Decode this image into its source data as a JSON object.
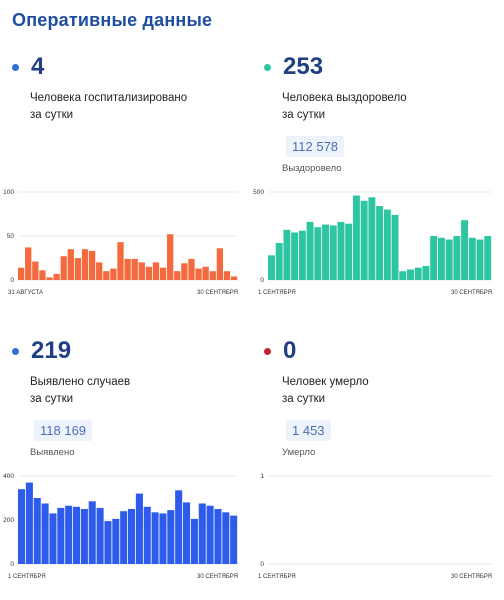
{
  "header": {
    "title": "Оперативные данные"
  },
  "panels": {
    "hospitalized": {
      "value": "4",
      "desc_line1": "Человека госпитализировано",
      "desc_line2": "за сутки",
      "dot_color": "#2f6fd6"
    },
    "recovered": {
      "value": "253",
      "desc_line1": "Человека выздоровело",
      "desc_line2": "за сутки",
      "total_value": "112 578",
      "total_label": "Выздоровело",
      "dot_color": "#2ec5a3"
    },
    "detected": {
      "value": "219",
      "desc_line1": "Выявлено случаев",
      "desc_line2": "за сутки",
      "total_value": "118 169",
      "total_label": "Выявлено",
      "dot_color": "#2f6fd6"
    },
    "deaths": {
      "value": "0",
      "desc_line1": "Человек умерло",
      "desc_line2": "за сутки",
      "total_value": "1 453",
      "total_label": "Умерло",
      "dot_color": "#c0262d"
    }
  },
  "chart_data": [
    {
      "type": "bar",
      "id": "hospitalized",
      "color": "#f26a3d",
      "ylim": [
        0,
        100
      ],
      "yticks": [
        "0",
        "50",
        "100"
      ],
      "xlabel_start": "31 АВГУСТА",
      "xlabel_end": "30 СЕНТЯБРЯ",
      "values": [
        14,
        37,
        21,
        11,
        3,
        7,
        27,
        35,
        25,
        35,
        33,
        20,
        10,
        13,
        43,
        24,
        24,
        20,
        15,
        20,
        14,
        52,
        10,
        19,
        24,
        13,
        15,
        10,
        36,
        10,
        4
      ]
    },
    {
      "type": "bar",
      "id": "recovered",
      "color": "#2ec5a3",
      "ylim": [
        0,
        500
      ],
      "yticks": [
        "0",
        "500"
      ],
      "xlabel_start": "1 СЕНТЯБРЯ",
      "xlabel_end": "30 СЕНТЯБРЯ",
      "values": [
        140,
        210,
        285,
        270,
        280,
        330,
        300,
        315,
        310,
        330,
        320,
        480,
        450,
        470,
        420,
        400,
        370,
        50,
        60,
        70,
        80,
        250,
        240,
        230,
        250,
        340,
        240,
        230,
        250
      ]
    },
    {
      "type": "bar",
      "id": "detected",
      "color": "#2f5bea",
      "ylim": [
        0,
        400
      ],
      "yticks": [
        "0",
        "200",
        "400"
      ],
      "xlabel_start": "1 СЕНТЯБРЯ",
      "xlabel_end": "30 СЕНТЯБРЯ",
      "values": [
        340,
        370,
        300,
        275,
        230,
        255,
        265,
        260,
        250,
        285,
        255,
        195,
        205,
        240,
        250,
        320,
        260,
        235,
        230,
        245,
        335,
        280,
        205,
        275,
        265,
        250,
        235,
        220
      ]
    },
    {
      "type": "bar",
      "id": "deaths",
      "color": "#c0262d",
      "ylim": [
        0,
        1
      ],
      "yticks": [
        "0",
        "1"
      ],
      "xlabel_start": "1 СЕНТЯБРЯ",
      "xlabel_end": "30 СЕНТЯБРЯ",
      "values": []
    }
  ]
}
